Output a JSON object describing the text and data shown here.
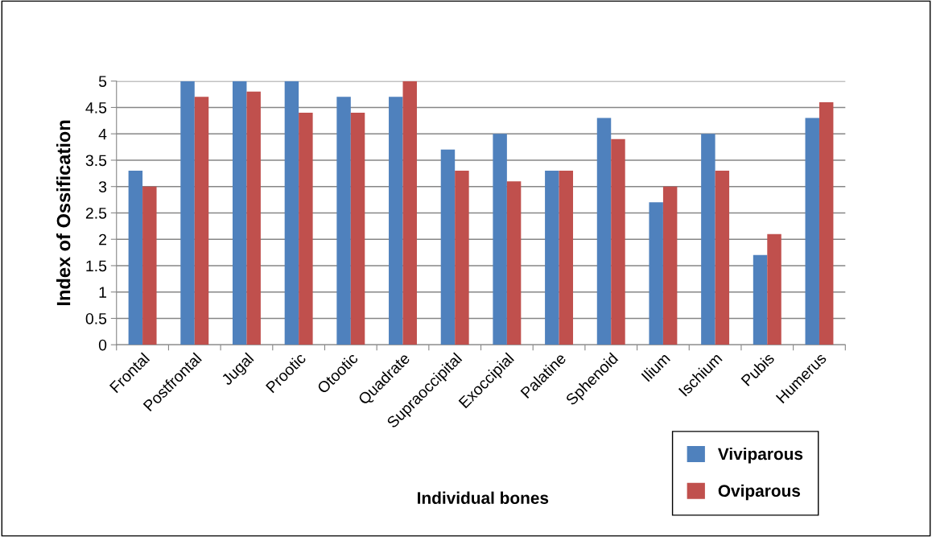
{
  "chart_data": {
    "type": "bar",
    "xlabel": "Individual bones",
    "ylabel": "Index of Ossification",
    "categories": [
      "Frontal",
      "Postfrontal",
      "Jugal",
      "Prootic",
      "Otootic",
      "Quadrate",
      "Supraoccipital",
      "Exoccipial",
      "Palatine",
      "Sphenoid",
      "Ilium",
      "Ischium",
      "Pubis",
      "Humerus"
    ],
    "series": [
      {
        "name": "Viviparous",
        "color": "#4f81bd",
        "values": [
          3.3,
          5,
          5,
          5,
          4.7,
          4.7,
          3.7,
          4.0,
          3.3,
          4.3,
          2.7,
          4.0,
          1.7,
          4.3
        ]
      },
      {
        "name": "Oviparous",
        "color": "#c0504d",
        "values": [
          3.0,
          4.7,
          4.8,
          4.4,
          4.4,
          5,
          3.3,
          3.1,
          3.3,
          3.9,
          3.0,
          3.3,
          2.1,
          4.6
        ]
      }
    ],
    "ylim": [
      0,
      5
    ],
    "yticks": [
      0,
      0.5,
      1,
      1.5,
      2,
      2.5,
      3,
      3.5,
      4,
      4.5,
      5
    ],
    "grid": "y",
    "legend": "bottom right"
  }
}
